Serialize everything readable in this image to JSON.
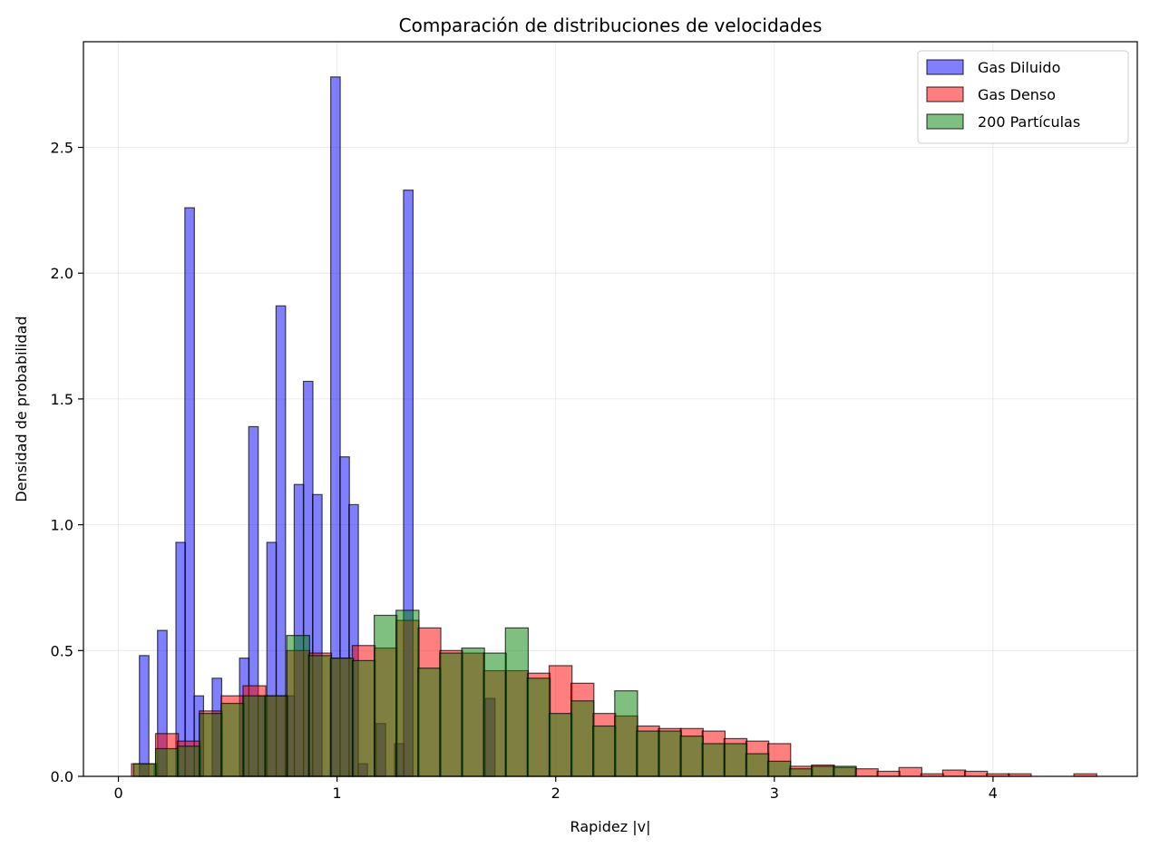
{
  "chart_data": {
    "type": "bar",
    "title": "Comparación de distribuciones de velocidades",
    "xlabel": "Rapidez |v|",
    "ylabel": "Densidad de probabilidad",
    "xlim": [
      -0.16,
      4.66
    ],
    "ylim": [
      0,
      2.92
    ],
    "xticks": [
      {
        "value": 0,
        "label": "0"
      },
      {
        "value": 1,
        "label": "1"
      },
      {
        "value": 2,
        "label": "2"
      },
      {
        "value": 3,
        "label": "3"
      },
      {
        "value": 4,
        "label": "4"
      }
    ],
    "yticks": [
      {
        "value": 0,
        "label": "0.0"
      },
      {
        "value": 0.5,
        "label": "0.5"
      },
      {
        "value": 1.0,
        "label": "1.0"
      },
      {
        "value": 1.5,
        "label": "1.5"
      },
      {
        "value": 2.0,
        "label": "2.0"
      },
      {
        "value": 2.5,
        "label": "2.5"
      }
    ],
    "grid": true,
    "legend_position": "top-right",
    "series": [
      {
        "name": "Gas Diluido",
        "color": "#0000ff",
        "alpha": 0.5,
        "bin_width": 0.0434,
        "bin_starts": [
          0.096,
          0.179,
          0.263,
          0.304,
          0.346,
          0.429,
          0.554,
          0.596,
          0.638,
          0.679,
          0.721,
          0.762,
          0.804,
          0.846,
          0.888,
          0.929,
          0.971,
          1.013,
          1.054,
          1.096,
          1.179,
          1.263,
          1.304,
          1.346,
          1.679
        ],
        "values": [
          0.48,
          0.58,
          0.93,
          2.26,
          0.32,
          0.39,
          0.47,
          1.39,
          0.32,
          0.93,
          1.87,
          0.32,
          1.16,
          1.57,
          1.12,
          0.0,
          2.78,
          1.27,
          1.08,
          0.05,
          0.21,
          0.13,
          2.33,
          0.0,
          0.31
        ]
      },
      {
        "name": "Gas Denso",
        "color": "#ff0000",
        "alpha": 0.5,
        "bin_width": 0.1045,
        "bin_starts": [
          0.06,
          0.17,
          0.27,
          0.37,
          0.47,
          0.57,
          0.67,
          0.77,
          0.87,
          0.97,
          1.07,
          1.17,
          1.27,
          1.37,
          1.47,
          1.57,
          1.67,
          1.77,
          1.87,
          1.97,
          2.07,
          2.17,
          2.27,
          2.37,
          2.47,
          2.57,
          2.67,
          2.77,
          2.87,
          2.97,
          3.07,
          3.17,
          3.27,
          3.37,
          3.47,
          3.57,
          3.67,
          3.77,
          3.87,
          3.97,
          4.07,
          4.17,
          4.27,
          4.37
        ],
        "values": [
          0.05,
          0.17,
          0.14,
          0.26,
          0.32,
          0.36,
          0.32,
          0.5,
          0.49,
          0.47,
          0.52,
          0.51,
          0.62,
          0.59,
          0.5,
          0.49,
          0.42,
          0.42,
          0.41,
          0.44,
          0.37,
          0.25,
          0.24,
          0.2,
          0.19,
          0.19,
          0.18,
          0.15,
          0.14,
          0.13,
          0.04,
          0.045,
          0.035,
          0.03,
          0.02,
          0.035,
          0.01,
          0.025,
          0.02,
          0.01,
          0.01,
          0.0,
          0.0,
          0.01
        ]
      },
      {
        "name": "200 Partículas",
        "color": "#008000",
        "alpha": 0.5,
        "bin_width": 0.1043,
        "bin_starts": [
          0.07,
          0.17,
          0.27,
          0.37,
          0.47,
          0.57,
          0.67,
          0.77,
          0.87,
          0.97,
          1.07,
          1.17,
          1.27,
          1.37,
          1.47,
          1.57,
          1.67,
          1.77,
          1.87,
          1.97,
          2.07,
          2.17,
          2.27,
          2.37,
          2.47,
          2.57,
          2.67,
          2.77,
          2.87,
          2.97,
          3.07,
          3.17,
          3.27
        ],
        "values": [
          0.05,
          0.11,
          0.12,
          0.25,
          0.29,
          0.32,
          0.32,
          0.56,
          0.48,
          0.47,
          0.46,
          0.64,
          0.66,
          0.43,
          0.49,
          0.51,
          0.49,
          0.59,
          0.39,
          0.25,
          0.3,
          0.2,
          0.34,
          0.18,
          0.18,
          0.16,
          0.13,
          0.13,
          0.09,
          0.06,
          0.03,
          0.04,
          0.04
        ]
      }
    ]
  }
}
